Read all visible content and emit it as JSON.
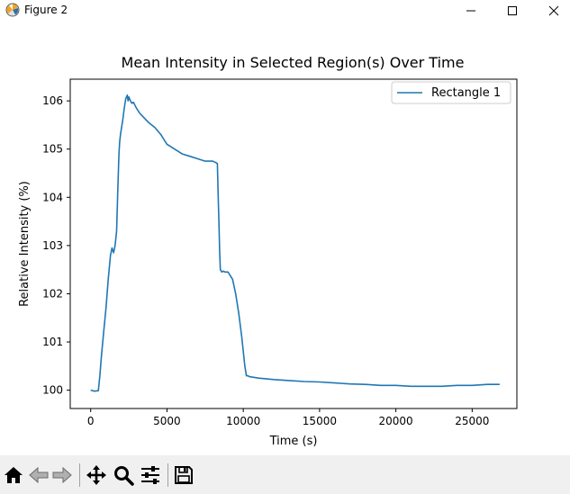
{
  "window": {
    "title": "Figure 2",
    "icons": {
      "app": "matplotlib-icon",
      "minimize": "minimize-icon",
      "maximize": "maximize-icon",
      "close": "close-icon"
    }
  },
  "chart_data": {
    "type": "line",
    "title": "Mean Intensity in Selected Region(s) Over Time",
    "xlabel": "Time (s)",
    "ylabel": "Relative Intensity (%)",
    "xlim": [
      -1340,
      27930
    ],
    "ylim": [
      99.62,
      106.45
    ],
    "xticks": [
      0,
      5000,
      10000,
      15000,
      20000,
      25000
    ],
    "xtick_labels": [
      "0",
      "5000",
      "10000",
      "15000",
      "20000",
      "25000"
    ],
    "yticks": [
      100,
      101,
      102,
      103,
      104,
      105,
      106
    ],
    "ytick_labels": [
      "100",
      "101",
      "102",
      "103",
      "104",
      "105",
      "106"
    ],
    "grid": false,
    "legend": {
      "placement": "top-right",
      "entries": [
        "Rectangle 1"
      ]
    },
    "series": [
      {
        "name": "Rectangle 1",
        "color": "#1f77b4",
        "x": [
          0,
          250,
          500,
          600,
          700,
          850,
          1000,
          1150,
          1300,
          1400,
          1500,
          1600,
          1700,
          1780,
          1850,
          1900,
          1950,
          2000,
          2100,
          2200,
          2300,
          2400,
          2450,
          2500,
          2600,
          2700,
          2800,
          3000,
          3200,
          3500,
          3800,
          4200,
          4600,
          4800,
          5000,
          5500,
          6000,
          6500,
          7000,
          7500,
          8000,
          8200,
          8300,
          8350,
          8400,
          8450,
          8500,
          8600,
          8700,
          8800,
          9000,
          9300,
          9500,
          9700,
          9900,
          10000,
          10100,
          10200,
          10300,
          10400,
          11000,
          12000,
          13000,
          14000,
          15000,
          16000,
          17000,
          18000,
          19000,
          20000,
          21000,
          22000,
          23000,
          24000,
          25000,
          26000,
          26800
        ],
        "values": [
          100.0,
          99.98,
          99.99,
          100.3,
          100.7,
          101.2,
          101.7,
          102.3,
          102.8,
          102.95,
          102.85,
          103.0,
          103.3,
          104.2,
          104.9,
          105.15,
          105.3,
          105.4,
          105.6,
          105.85,
          106.05,
          106.12,
          106.0,
          106.08,
          106.0,
          105.95,
          105.97,
          105.85,
          105.75,
          105.65,
          105.55,
          105.45,
          105.3,
          105.2,
          105.1,
          105.0,
          104.9,
          104.85,
          104.8,
          104.75,
          104.75,
          104.72,
          104.7,
          104.1,
          103.5,
          102.9,
          102.5,
          102.45,
          102.47,
          102.45,
          102.45,
          102.3,
          102.0,
          101.6,
          101.1,
          100.8,
          100.5,
          100.3,
          100.3,
          100.28,
          100.25,
          100.22,
          100.2,
          100.18,
          100.17,
          100.15,
          100.13,
          100.12,
          100.1,
          100.1,
          100.08,
          100.08,
          100.08,
          100.1,
          100.1,
          100.12,
          100.12
        ]
      }
    ]
  },
  "toolbar": {
    "icons": [
      "home-icon",
      "back-arrow-icon",
      "forward-arrow-icon",
      "pan-icon",
      "zoom-icon",
      "configure-subplots-icon",
      "save-icon"
    ]
  }
}
